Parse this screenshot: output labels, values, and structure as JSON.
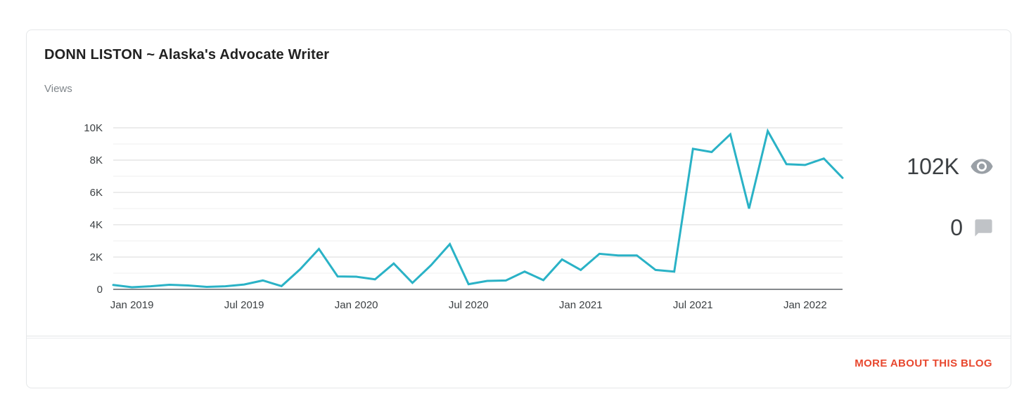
{
  "card": {
    "title": "DONN LISTON ~ Alaska's Advocate Writer",
    "chart_label": "Views",
    "stats": {
      "views": {
        "value": "102K",
        "icon": "eye-icon"
      },
      "comments": {
        "value": "0",
        "icon": "comment-icon"
      }
    },
    "footer_link": "MORE ABOUT THIS BLOG"
  },
  "colors": {
    "line": "#2ab2c6",
    "grid_major": "#d9d9d9",
    "grid_minor": "#efefef",
    "baseline": "#85898c",
    "axis_label": "#3c4043",
    "title_text": "#212121",
    "muted_text": "#80868b",
    "stat_text": "#3c4043",
    "icon_eye": "#9aa0a6",
    "icon_comment": "#c0c3c7",
    "link_orange": "#e8472e",
    "card_border": "#e5e7e9",
    "divider_line": "#e3e5e7",
    "divider_line2": "#eaecee"
  },
  "chart_data": {
    "type": "line",
    "title": "Blog views per month",
    "xlabel": "",
    "ylabel": "Views",
    "ylim": [
      0,
      10000
    ],
    "major_step": 2000,
    "minor_step": 1000,
    "grid": true,
    "legend": "none",
    "categories": [
      "Dec 2018",
      "Jan 2019",
      "Feb 2019",
      "Mar 2019",
      "Apr 2019",
      "May 2019",
      "Jun 2019",
      "Jul 2019",
      "Aug 2019",
      "Sep 2019",
      "Oct 2019",
      "Nov 2019",
      "Dec 2019",
      "Jan 2020",
      "Feb 2020",
      "Mar 2020",
      "Apr 2020",
      "May 2020",
      "Jun 2020",
      "Jul 2020",
      "Aug 2020",
      "Sep 2020",
      "Oct 2020",
      "Nov 2020",
      "Dec 2020",
      "Jan 2021",
      "Feb 2021",
      "Mar 2021",
      "Apr 2021",
      "May 2021",
      "Jun 2021",
      "Jul 2021",
      "Aug 2021",
      "Sep 2021",
      "Oct 2021",
      "Nov 2021",
      "Dec 2021",
      "Jan 2022",
      "Feb 2022",
      "Mar 2022"
    ],
    "values": [
      270,
      130,
      190,
      280,
      240,
      150,
      190,
      300,
      550,
      200,
      1250,
      2500,
      800,
      780,
      620,
      1600,
      400,
      1500,
      2800,
      320,
      520,
      550,
      1100,
      570,
      1850,
      1200,
      2200,
      2100,
      2100,
      1200,
      1100,
      8700,
      8500,
      9600,
      5000,
      9800,
      7750,
      7700,
      8100,
      6900
    ],
    "y_ticks": [
      {
        "value": 0,
        "label": "0"
      },
      {
        "value": 2000,
        "label": "2K"
      },
      {
        "value": 4000,
        "label": "4K"
      },
      {
        "value": 6000,
        "label": "6K"
      },
      {
        "value": 8000,
        "label": "8K"
      },
      {
        "value": 10000,
        "label": "10K"
      }
    ],
    "x_ticks": [
      {
        "index": 1,
        "label": "Jan 2019"
      },
      {
        "index": 7,
        "label": "Jul 2019"
      },
      {
        "index": 13,
        "label": "Jan 2020"
      },
      {
        "index": 19,
        "label": "Jul 2020"
      },
      {
        "index": 25,
        "label": "Jan 2021"
      },
      {
        "index": 31,
        "label": "Jul 2021"
      },
      {
        "index": 37,
        "label": "Jan 2022"
      }
    ],
    "total_views_badge": "102K",
    "total_comments_badge": "0"
  }
}
